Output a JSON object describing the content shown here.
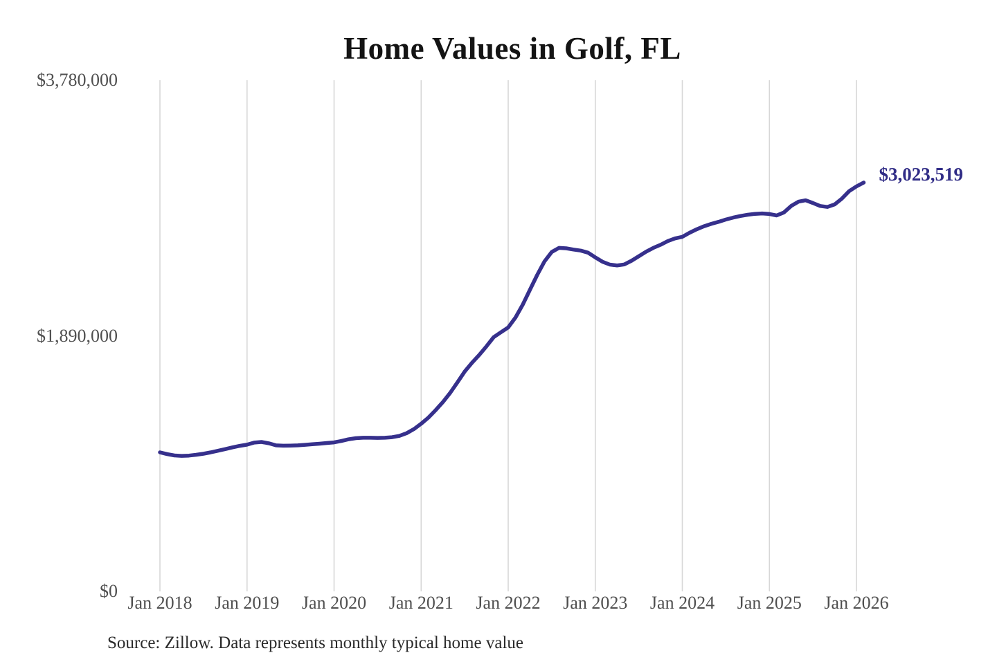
{
  "title": "Home Values in Golf, FL",
  "source_note": "Source: Zillow. Data represents monthly typical home value",
  "end_label": "$3,023,519",
  "colors": {
    "line": "#36308C",
    "end_label": "#302C86",
    "grid": "#d7d7d7",
    "axis_text": "#4f4f4f",
    "title_text": "#141414",
    "source_text": "#2a2a2a",
    "background": "#ffffff"
  },
  "y_axis": {
    "min": 0,
    "max": 3780000,
    "ticks": [
      {
        "label": "$3,780,000",
        "value": 3780000
      },
      {
        "label": "$1,890,000",
        "value": 1890000
      },
      {
        "label": "$0",
        "value": 0
      }
    ]
  },
  "x_axis": {
    "ticks": [
      "Jan 2018",
      "Jan 2019",
      "Jan 2020",
      "Jan 2021",
      "Jan 2022",
      "Jan 2023",
      "Jan 2024",
      "Jan 2025",
      "Jan 2026"
    ]
  },
  "chart_data": {
    "type": "line",
    "title": "Home Values in Golf, FL",
    "series_name": "Monthly typical home value",
    "xlabel": "",
    "ylabel": "",
    "ylim": [
      0,
      3780000
    ],
    "grid": "vertical-year-gridlines-only",
    "legend_position": "none",
    "annotation": {
      "text": "$3,023,519",
      "x": "2026-02",
      "value": 3023519
    },
    "x": [
      "2018-01",
      "2018-02",
      "2018-03",
      "2018-04",
      "2018-05",
      "2018-06",
      "2018-07",
      "2018-08",
      "2018-09",
      "2018-10",
      "2018-11",
      "2018-12",
      "2019-01",
      "2019-02",
      "2019-03",
      "2019-04",
      "2019-05",
      "2019-06",
      "2019-07",
      "2019-08",
      "2019-09",
      "2019-10",
      "2019-11",
      "2019-12",
      "2020-01",
      "2020-02",
      "2020-03",
      "2020-04",
      "2020-05",
      "2020-06",
      "2020-07",
      "2020-08",
      "2020-09",
      "2020-10",
      "2020-11",
      "2020-12",
      "2021-01",
      "2021-02",
      "2021-03",
      "2021-04",
      "2021-05",
      "2021-06",
      "2021-07",
      "2021-08",
      "2021-09",
      "2021-10",
      "2021-11",
      "2021-12",
      "2022-01",
      "2022-02",
      "2022-03",
      "2022-04",
      "2022-05",
      "2022-06",
      "2022-07",
      "2022-08",
      "2022-09",
      "2022-10",
      "2022-11",
      "2022-12",
      "2023-01",
      "2023-02",
      "2023-03",
      "2023-04",
      "2023-05",
      "2023-06",
      "2023-07",
      "2023-08",
      "2023-09",
      "2023-10",
      "2023-11",
      "2023-12",
      "2024-01",
      "2024-02",
      "2024-03",
      "2024-04",
      "2024-05",
      "2024-06",
      "2024-07",
      "2024-08",
      "2024-09",
      "2024-10",
      "2024-11",
      "2024-12",
      "2025-01",
      "2025-02",
      "2025-03",
      "2025-04",
      "2025-05",
      "2025-06",
      "2025-07",
      "2025-08",
      "2025-09",
      "2025-10",
      "2025-11",
      "2025-12",
      "2026-01",
      "2026-02"
    ],
    "values": [
      1028000,
      1015000,
      1005000,
      1002000,
      1004000,
      1010000,
      1018000,
      1028000,
      1040000,
      1052000,
      1065000,
      1076000,
      1085000,
      1100000,
      1105000,
      1095000,
      1080000,
      1077000,
      1078000,
      1080000,
      1084000,
      1088000,
      1092000,
      1097000,
      1102000,
      1112000,
      1125000,
      1133000,
      1136000,
      1136000,
      1135000,
      1136000,
      1140000,
      1150000,
      1170000,
      1200000,
      1240000,
      1285000,
      1340000,
      1400000,
      1468000,
      1545000,
      1625000,
      1690000,
      1748000,
      1812000,
      1880000,
      1916000,
      1952000,
      2025000,
      2120000,
      2230000,
      2340000,
      2440000,
      2510000,
      2540000,
      2537000,
      2528000,
      2520000,
      2505000,
      2470000,
      2438000,
      2417000,
      2410000,
      2418000,
      2445000,
      2478000,
      2512000,
      2540000,
      2563000,
      2590000,
      2610000,
      2622000,
      2652000,
      2678000,
      2700000,
      2718000,
      2733000,
      2750000,
      2764000,
      2776000,
      2785000,
      2792000,
      2795000,
      2791000,
      2780000,
      2802000,
      2850000,
      2882000,
      2892000,
      2872000,
      2850000,
      2843000,
      2862000,
      2905000,
      2960000,
      2995000,
      3023519
    ]
  }
}
